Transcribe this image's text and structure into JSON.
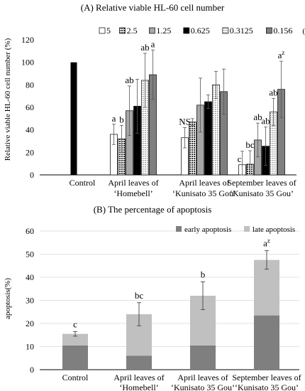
{
  "chart_data": [
    {
      "type": "bar",
      "title": "(A) Relative viable HL-60 cell number",
      "ylabel": "Relative viable HL-60 cell number (%)",
      "xlabel": "",
      "ylim": [
        0,
        120
      ],
      "yticks": [
        "0",
        "20",
        "40",
        "60",
        "80",
        "100",
        "120"
      ],
      "legend_position": "top",
      "legend_unit": "(mg・ml⁻¹)",
      "grid": false,
      "control": {
        "label": "Control",
        "value": 100,
        "color": "#000000"
      },
      "categories": [
        [
          "April leaves of",
          "‘Homebell’"
        ],
        [
          "April leaves of",
          "‘Kunisato 35 Gou’"
        ],
        [
          "September leaves of",
          "‘Kunisato 35 Gou’"
        ]
      ],
      "series": [
        {
          "name": "5",
          "color": "#ffffff",
          "pattern": "none",
          "values": [
            36,
            33,
            9
          ],
          "errors": [
            9,
            9,
            12
          ],
          "labels": [
            "a",
            "NS",
            "c"
          ]
        },
        {
          "name": "2.5",
          "color": "#555555",
          "pattern": "dots",
          "values": [
            32,
            47,
            9.5
          ],
          "errors": [
            12,
            3,
            12
          ],
          "labels": [
            "b",
            "",
            "bc"
          ]
        },
        {
          "name": "1.25",
          "color": "#a6a6a6",
          "pattern": "none",
          "values": [
            57,
            62,
            31
          ],
          "errors": [
            22,
            24,
            15
          ],
          "labels": [
            "ab",
            "",
            "ab"
          ]
        },
        {
          "name": "0.625",
          "color": "#000000",
          "pattern": "none",
          "values": [
            61,
            65,
            25.5
          ],
          "errors": [
            24,
            6,
            17
          ],
          "labels": [
            "",
            "",
            "ab"
          ]
        },
        {
          "name": "0.3125",
          "color": "#c8c8c8",
          "pattern": "dots",
          "values": [
            84,
            80,
            56
          ],
          "errors": [
            24,
            12,
            12
          ],
          "labels": [
            "ab",
            "",
            "ab"
          ]
        },
        {
          "name": "0.156",
          "color": "#7f7f7f",
          "pattern": "none",
          "values": [
            89,
            74,
            76
          ],
          "errors": [
            22,
            20,
            25
          ],
          "labels": [
            "a",
            "",
            "a"
          ]
        }
      ],
      "september_top_label_suffix": "z"
    },
    {
      "type": "bar",
      "stacked": true,
      "title": "(B) The percentage of apoptosis",
      "ylabel": "apoptosis(%)",
      "xlabel": "",
      "ylim": [
        0,
        60
      ],
      "yticks": [
        "0",
        "10",
        "20",
        "30",
        "40",
        "50",
        "60"
      ],
      "legend_position": "top-right",
      "grid": true,
      "categories": [
        [
          "Control"
        ],
        [
          "April leaves of",
          "‘Homebell’"
        ],
        [
          "April leaves of",
          "‘Kunisato 35 Gou’"
        ],
        [
          "September leaves of",
          "‘Kunisato 35 Gou’"
        ]
      ],
      "series": [
        {
          "name": "early apoptosis",
          "color": "#7f7f7f",
          "values": [
            10.5,
            6,
            10.5,
            23.5
          ]
        },
        {
          "name": "late apoptosis",
          "color": "#c0c0c0",
          "values": [
            5,
            18,
            21.5,
            24
          ]
        }
      ],
      "errors": [
        1,
        5,
        6,
        4
      ],
      "labels": [
        "c",
        "bc",
        "b",
        "a"
      ],
      "label_superscripts": [
        "",
        "",
        "",
        "z"
      ]
    }
  ]
}
